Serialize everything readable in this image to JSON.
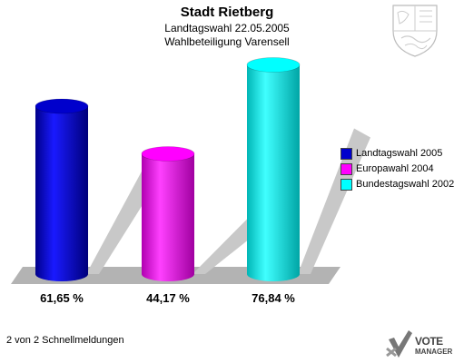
{
  "header": {
    "title": "Stadt Rietberg",
    "subtitle": "Landtagswahl 22.05.2005",
    "subtitle2": "Wahlbeteiligung Varensell"
  },
  "chart_data": {
    "type": "bar",
    "categories": [
      "Landtagswahl 2005",
      "Europawahl 2004",
      "Bundestagswahl 2002"
    ],
    "values": [
      61.65,
      44.17,
      76.84
    ],
    "value_labels": [
      "61,65 %",
      "44,17 %",
      "76,84 %"
    ],
    "colors": [
      "#0000cc",
      "#ff00ff",
      "#00ffff"
    ],
    "ylim": [
      0,
      80
    ],
    "legend_position": "right"
  },
  "legend": {
    "items": [
      {
        "label": "Landtagswahl 2005",
        "color": "#0000cc"
      },
      {
        "label": "Europawahl 2004",
        "color": "#ff00ff"
      },
      {
        "label": "Bundestagswahl 2002",
        "color": "#00ffff"
      }
    ]
  },
  "footer": {
    "text": "2 von 2 Schnellmeldungen"
  },
  "brand": {
    "line1": "VOTE",
    "line2": "MANAGER"
  }
}
